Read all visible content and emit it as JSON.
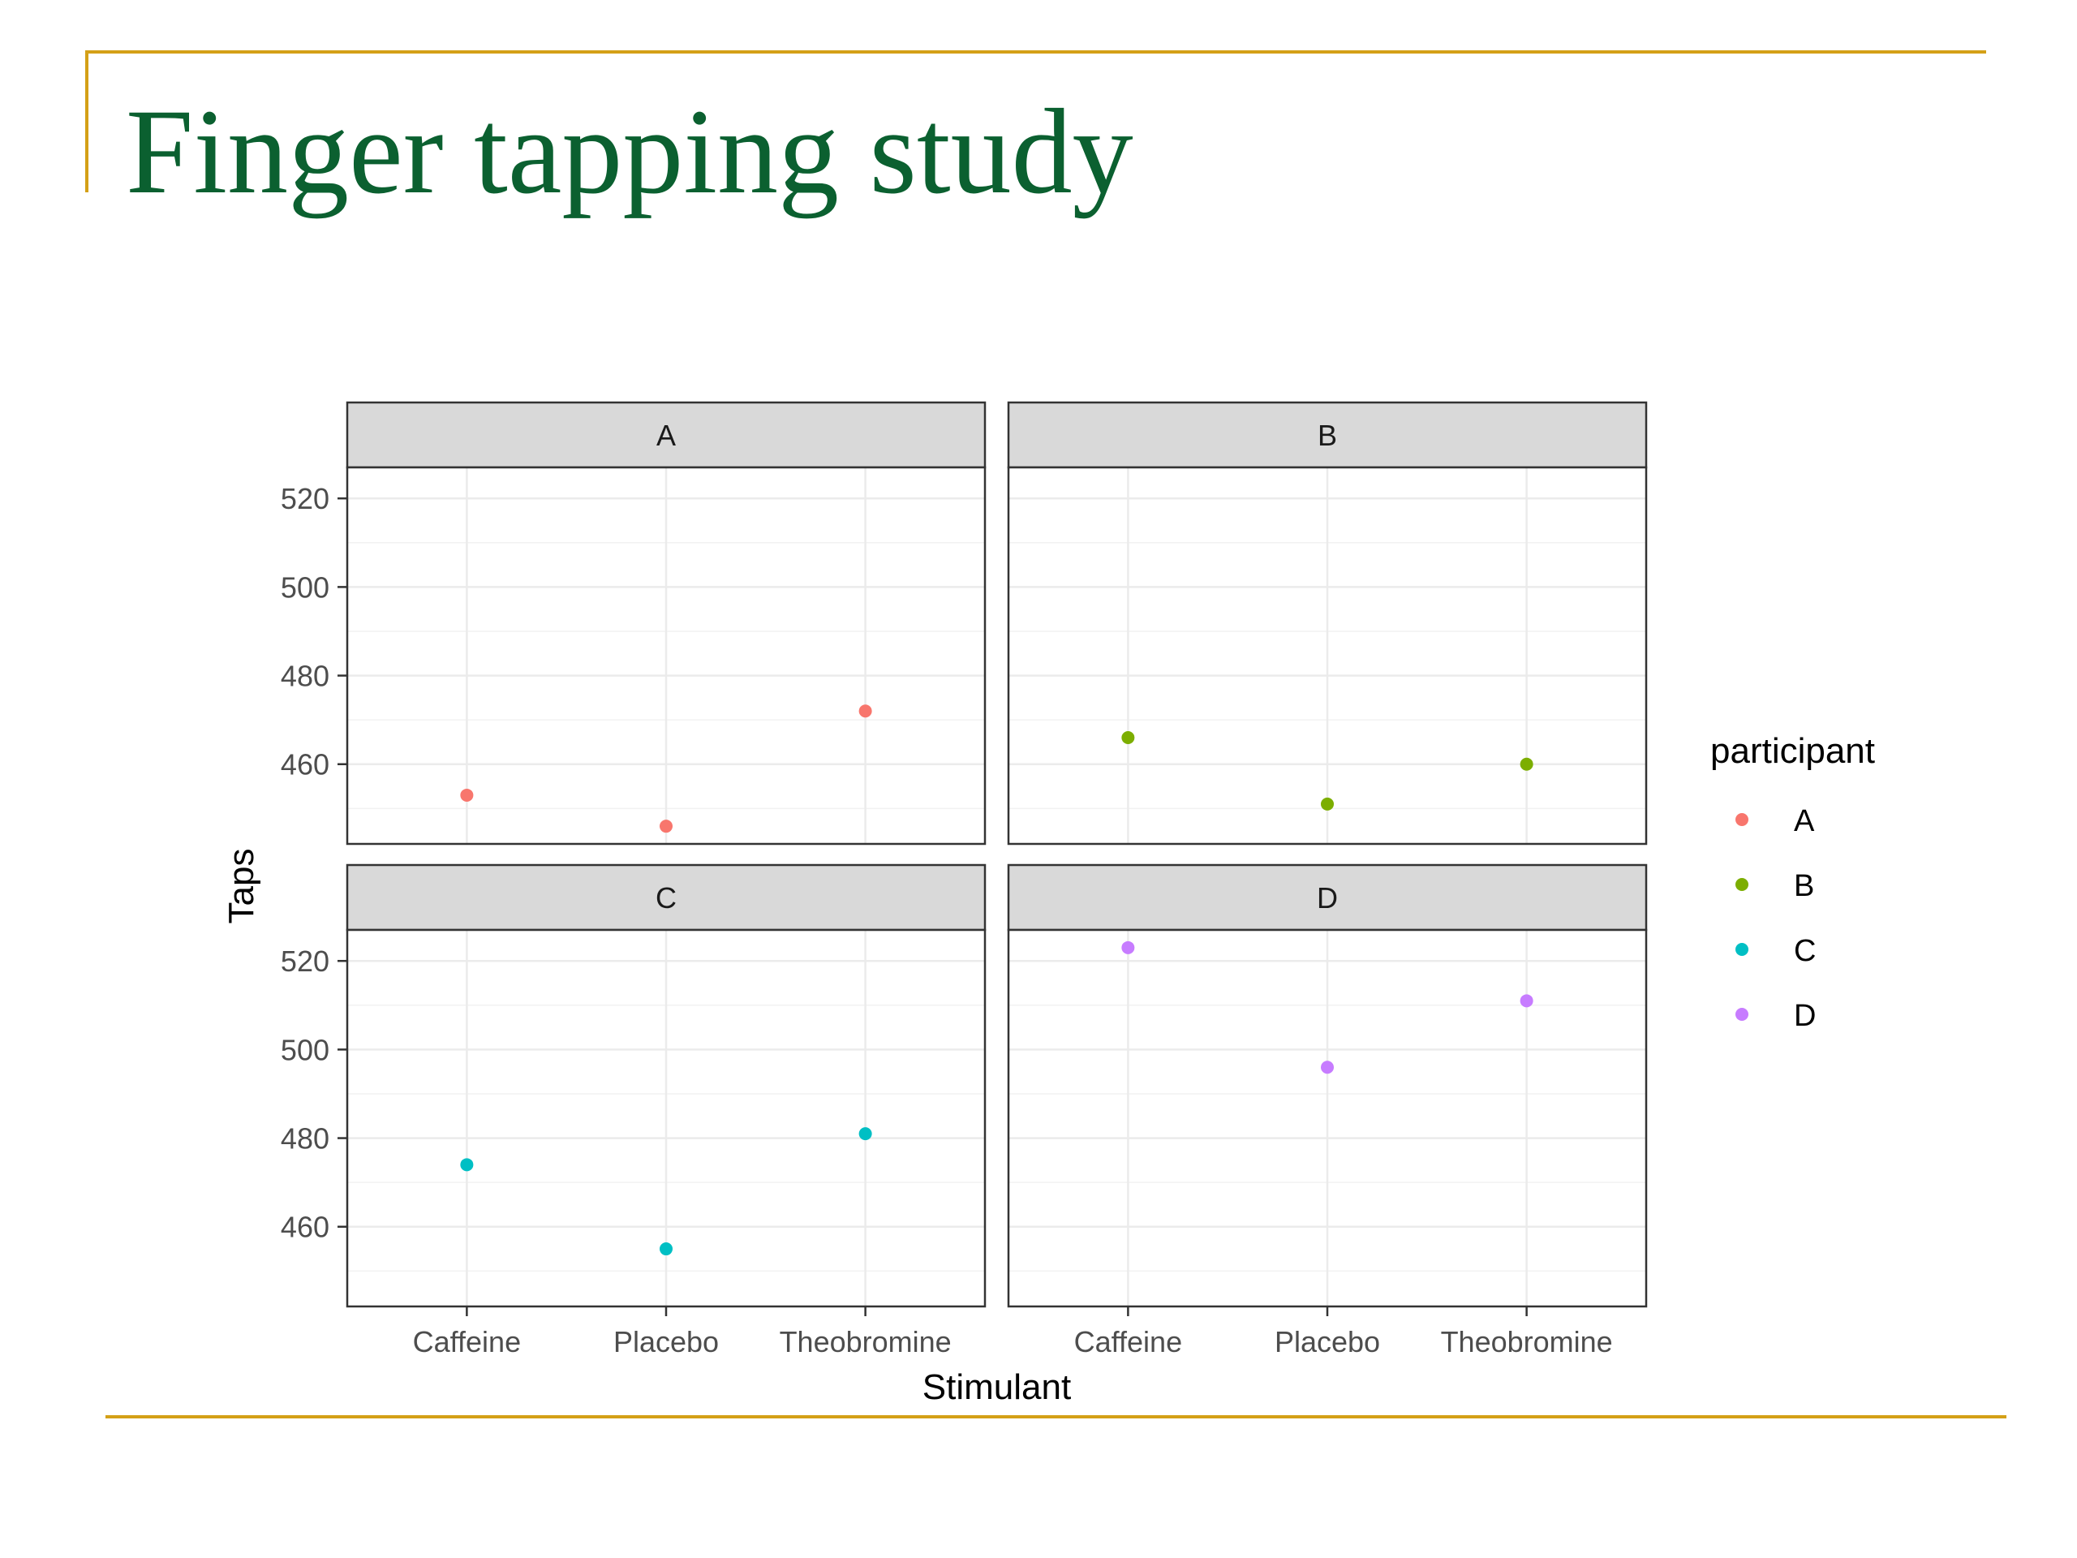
{
  "slide": {
    "title": "Finger tapping study"
  },
  "chart_data": {
    "type": "scatter",
    "facet_by": "participant",
    "xlabel": "Stimulant",
    "ylabel": "Taps",
    "categories": [
      "Caffeine",
      "Placebo",
      "Theobromine"
    ],
    "ylim": [
      442,
      527
    ],
    "yticks": [
      460,
      480,
      500,
      520
    ],
    "grid": true,
    "legend": {
      "title": "participant",
      "position": "right"
    },
    "series": [
      {
        "name": "A",
        "color": "#F8766D",
        "values": [
          453,
          446,
          472
        ]
      },
      {
        "name": "B",
        "color": "#7CAE00",
        "values": [
          466,
          451,
          460
        ]
      },
      {
        "name": "C",
        "color": "#00BFC4",
        "values": [
          474,
          455,
          481
        ]
      },
      {
        "name": "D",
        "color": "#C77CFF",
        "values": [
          523,
          496,
          511
        ]
      }
    ]
  }
}
